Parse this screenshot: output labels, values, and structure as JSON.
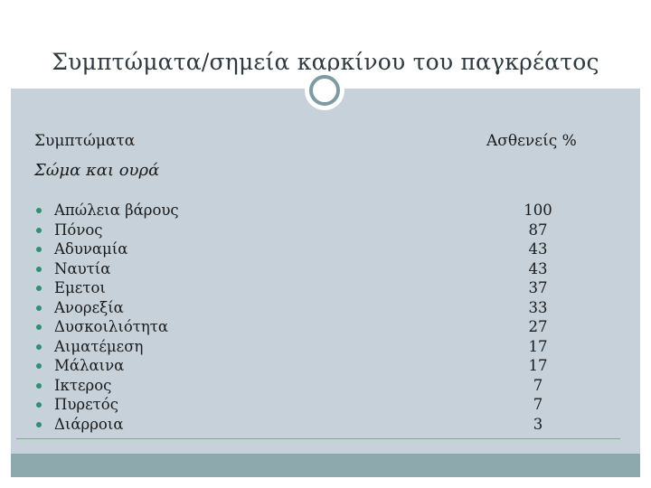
{
  "slide": {
    "title": "Συμπτώματα/σημεία καρκίνου του παγκρέατος",
    "header_left": "Συμπτώματα",
    "header_right": "Ασθενείς %",
    "subheader": "Σώμα και ουρά",
    "rows": [
      {
        "symptom": "Απώλεια βάρους",
        "percent": "100"
      },
      {
        "symptom": "Πόνος",
        "percent": "87"
      },
      {
        "symptom": "Αδυναμία",
        "percent": "43"
      },
      {
        "symptom": "Ναυτία",
        "percent": "43"
      },
      {
        "symptom": "Εμετοι",
        "percent": "37"
      },
      {
        "symptom": "Ανορεξία",
        "percent": "33"
      },
      {
        "symptom": "Δυσκοιλιότητα",
        "percent": "27"
      },
      {
        "symptom": "Αιματέμεση",
        "percent": "17"
      },
      {
        "symptom": "Μάλαινα",
        "percent": "17"
      },
      {
        "symptom": "Ικτερος",
        "percent": "7"
      },
      {
        "symptom": "Πυρετός",
        "percent": "7"
      },
      {
        "symptom": "Διάρροια",
        "percent": "3"
      }
    ]
  },
  "colors": {
    "content_bg": "#c6d1d9",
    "footer_bg": "#8ea9ad",
    "accent_ring": "#7c9ba3",
    "bullet": "#2f8f6f",
    "rule": "#4bd24b"
  }
}
